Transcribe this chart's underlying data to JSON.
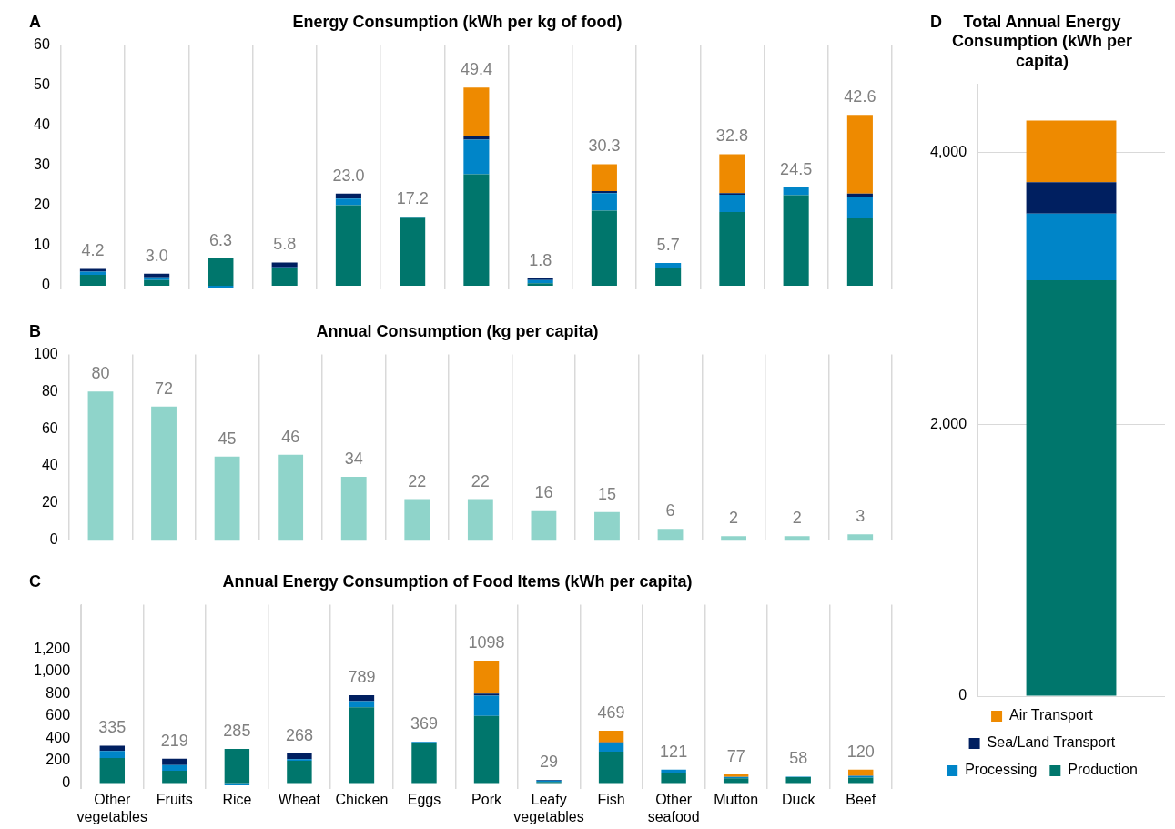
{
  "chart_data": [
    {
      "type": "bar",
      "title": "Energy Consumption (kWh per kg of food)",
      "annotations": [
        "A"
      ],
      "stacked": true,
      "grid": "x",
      "legend": false,
      "tick_labels": "y",
      "categories": [
        null,
        null,
        null,
        null,
        null,
        null,
        null,
        null,
        null,
        null,
        null,
        null,
        null
      ],
      "series": [
        {
          "color": "#00766c",
          "values": [
            2.7,
            1.4,
            6.8,
            4.4,
            20.1,
            16.9,
            27.8,
            0.6,
            18.7,
            4.4,
            18.4,
            22.6,
            16.8
          ]
        },
        {
          "color": "#0085c8",
          "values": [
            0.8,
            0.7,
            -0.5,
            0.2,
            1.6,
            0.3,
            8.6,
            0.8,
            4.4,
            1.3,
            4.3,
            1.9,
            5.2
          ]
        },
        {
          "color": "#001f60",
          "values": [
            0.7,
            0.9,
            null,
            1.2,
            1.3,
            null,
            0.9,
            0.4,
            0.5,
            null,
            0.4,
            null,
            1.0
          ]
        },
        {
          "color": "#ee8a00",
          "values": [
            null,
            null,
            null,
            null,
            null,
            null,
            12.1,
            null,
            6.7,
            null,
            9.7,
            null,
            19.6
          ]
        }
      ],
      "totals": [
        "4.2",
        "3.0",
        "6.3",
        "5.8",
        "23.0",
        "17.2",
        "49.4",
        "1.8",
        "30.3",
        "5.7",
        "32.8",
        "24.5",
        "42.6"
      ],
      "ylim": [
        -1,
        60
      ],
      "yticks": [
        0,
        10,
        20,
        30,
        40,
        50,
        60
      ]
    },
    {
      "type": "bar",
      "title": "Annual Consumption (kg per capita)",
      "annotations": [
        "B"
      ],
      "grid": "x",
      "legend": false,
      "tick_labels": "y",
      "data_labels": true,
      "categories": [
        null,
        null,
        null,
        null,
        null,
        null,
        null,
        null,
        null,
        null,
        null,
        null,
        null
      ],
      "values": [
        80,
        72,
        45,
        46,
        34,
        22,
        22,
        16,
        15,
        6,
        2,
        2,
        3
      ],
      "color": "#8fd4ca",
      "ylim": [
        0,
        100
      ],
      "yticks": [
        0,
        20,
        40,
        60,
        80,
        100
      ]
    },
    {
      "type": "bar",
      "title": "Annual Energy Consumption of Food Items (kWh per capita)",
      "annotations": [
        "C"
      ],
      "stacked": true,
      "grid": "x",
      "legend": false,
      "categories": [
        "Other vegetables",
        "Fruits",
        "Rice",
        "Wheat",
        "Chicken",
        "Eggs",
        "Pork",
        "Leafy vegetables",
        "Fish",
        "Other seafood",
        "Mutton",
        "Duck",
        "Beef"
      ],
      "series": [
        {
          "color": "#00766c",
          "values": [
            224,
            110,
            306,
            200,
            680,
            362,
            603,
            10,
            281,
            87,
            43,
            53,
            48
          ]
        },
        {
          "color": "#0085c8",
          "values": [
            63,
            51,
            -21,
            15,
            55,
            7,
            182,
            13,
            77,
            34,
            11,
            5,
            15
          ]
        },
        {
          "color": "#001f60",
          "values": [
            48,
            58,
            null,
            53,
            54,
            null,
            18,
            6,
            8,
            null,
            null,
            null,
            3
          ]
        },
        {
          "color": "#ee8a00",
          "values": [
            null,
            null,
            null,
            null,
            null,
            null,
            295,
            null,
            103,
            null,
            23,
            null,
            54
          ]
        }
      ],
      "totals": [
        "335",
        "219",
        "285",
        "268",
        "789",
        "369",
        "1098",
        "29",
        "469",
        "121",
        "77",
        "58",
        "120"
      ],
      "ylim": [
        -50,
        1600
      ],
      "yticks": [
        0,
        200,
        400,
        600,
        800,
        {
          "value": 1000,
          "label": "1,000"
        },
        {
          "value": 1200,
          "label": "1,200"
        }
      ]
    },
    {
      "type": "bar",
      "title": "Total Annual Energy Consumption (kWh per capita)",
      "annotations": [
        "D"
      ],
      "stacked": true,
      "grid": "y",
      "legend": "bottom",
      "tick_labels": "y",
      "categories": [
        null
      ],
      "series": [
        {
          "name": "Production",
          "color": "#00766c",
          "values": [
            3060
          ]
        },
        {
          "name": "Processing",
          "color": "#0085c8",
          "values": [
            490
          ]
        },
        {
          "name": "Sea/Land Transport",
          "color": "#001f60",
          "values": [
            230
          ]
        },
        {
          "name": "Air Transport",
          "color": "#ee8a00",
          "values": [
            455
          ]
        }
      ],
      "ylim": [
        0,
        4500
      ],
      "yticks": [
        0,
        {
          "value": 2000,
          "label": "2,000"
        },
        {
          "value": 4000,
          "label": "4,000"
        }
      ]
    }
  ]
}
